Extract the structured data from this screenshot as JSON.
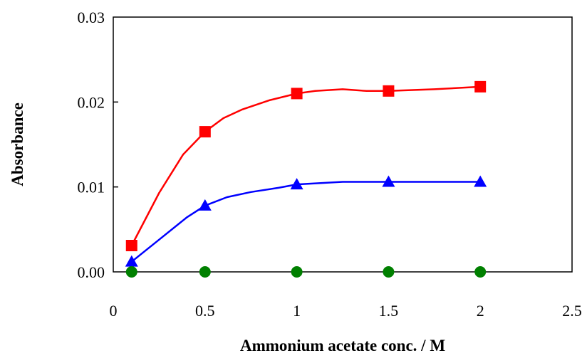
{
  "chart_data": {
    "type": "line",
    "title": "",
    "xlabel": "Ammonium acetate conc. / M",
    "ylabel": "Absorbance",
    "xlim": [
      0,
      2.5
    ],
    "ylim": [
      0,
      0.03
    ],
    "x_ticks": [
      0,
      0.5,
      1,
      1.5,
      2,
      2.5
    ],
    "x_tick_labels": [
      "0",
      "0.5",
      "1",
      "1.5",
      "2",
      "2.5"
    ],
    "y_ticks": [
      0,
      0.01,
      0.02,
      0.03
    ],
    "y_tick_labels": [
      "0.00",
      "0.01",
      "0.02",
      "0.03"
    ],
    "grid": false,
    "legend": "none",
    "series": [
      {
        "color": "#ff0000",
        "marker": "square",
        "x": [
          0.1,
          0.5,
          1,
          1.5,
          2
        ],
        "y": [
          0.0031,
          0.0165,
          0.021,
          0.0213,
          0.0218
        ],
        "curve_x": [
          0.1,
          0.25,
          0.38,
          0.5,
          0.6,
          0.7,
          0.85,
          1,
          1.1,
          1.25,
          1.38,
          1.5,
          1.75,
          2
        ],
        "curve_y": [
          0.0031,
          0.0093,
          0.0138,
          0.0165,
          0.0181,
          0.0191,
          0.0202,
          0.021,
          0.0213,
          0.0215,
          0.0213,
          0.0213,
          0.0215,
          0.0218
        ]
      },
      {
        "color": "#0000ff",
        "marker": "triangle",
        "x": [
          0.1,
          0.5,
          1,
          1.5,
          2
        ],
        "y": [
          0.0012,
          0.0078,
          0.0103,
          0.0106,
          0.0106
        ],
        "curve_x": [
          0.1,
          0.25,
          0.4,
          0.5,
          0.62,
          0.75,
          0.9,
          1,
          1.25,
          1.5,
          2
        ],
        "curve_y": [
          0.0012,
          0.0038,
          0.0064,
          0.0078,
          0.0088,
          0.0094,
          0.0099,
          0.0103,
          0.0106,
          0.0106,
          0.0106
        ]
      },
      {
        "color": "#008000",
        "marker": "circle",
        "x": [
          0.1,
          0.5,
          1,
          1.5,
          2
        ],
        "y": [
          0,
          0,
          0,
          0,
          0
        ],
        "curve_x": [],
        "curve_y": []
      }
    ]
  }
}
